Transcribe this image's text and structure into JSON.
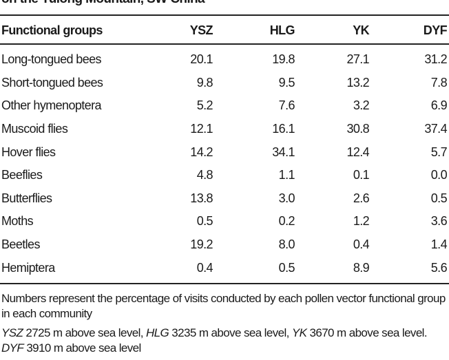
{
  "title": "on the Yulong Mountain, SW China",
  "table": {
    "headers": [
      "Functional groups",
      "YSZ",
      "HLG",
      "YK",
      "DYF"
    ],
    "rows": [
      [
        "Long-tongued bees",
        "20.1",
        "19.8",
        "27.1",
        "31.2"
      ],
      [
        "Short-tongued bees",
        "9.8",
        "9.5",
        "13.2",
        "7.8"
      ],
      [
        "Other hymenoptera",
        "5.2",
        "7.6",
        "3.2",
        "6.9"
      ],
      [
        "Muscoid flies",
        "12.1",
        "16.1",
        "30.8",
        "37.4"
      ],
      [
        "Hover flies",
        "14.2",
        "34.1",
        "12.4",
        "5.7"
      ],
      [
        "Beeflies",
        "4.8",
        "1.1",
        "0.1",
        "0.0"
      ],
      [
        "Butterflies",
        "13.8",
        "3.0",
        "2.6",
        "0.5"
      ],
      [
        "Moths",
        "0.5",
        "0.2",
        "1.2",
        "3.6"
      ],
      [
        "Beetles",
        "19.2",
        "8.0",
        "0.4",
        "1.4"
      ],
      [
        "Hemiptera",
        "0.4",
        "0.5",
        "8.9",
        "5.6"
      ]
    ]
  },
  "notes": {
    "note1": "Numbers represent the percentage of visits conducted by each pollen vector functional group in each community",
    "abbrev": [
      {
        "abbr": "YSZ",
        "text": " 2725 m above sea level, "
      },
      {
        "abbr": "HLG",
        "text": " 3235 m above sea level, "
      },
      {
        "abbr": "YK",
        "text": " 3670 m above sea level. "
      },
      {
        "abbr": "DYF",
        "text": " 3910 m above sea level"
      }
    ]
  }
}
